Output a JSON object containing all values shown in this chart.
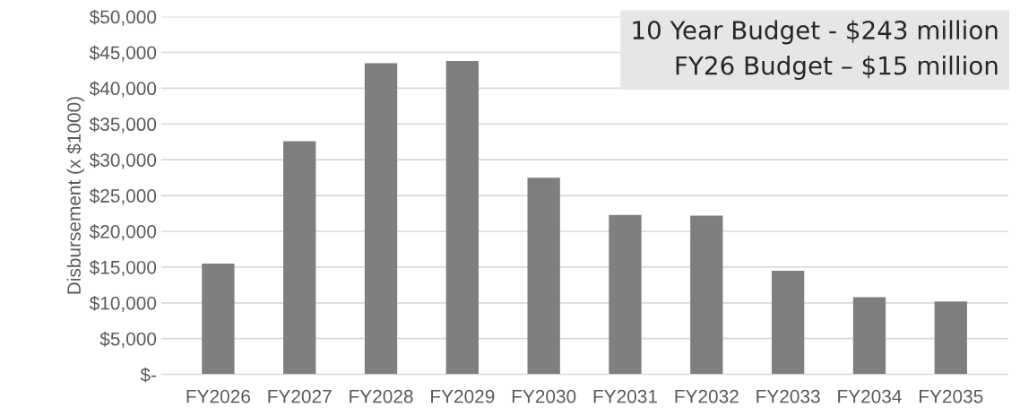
{
  "chart_data": {
    "type": "bar",
    "categories": [
      "FY2026",
      "FY2027",
      "FY2028",
      "FY2029",
      "FY2030",
      "FY2031",
      "FY2032",
      "FY2033",
      "FY2034",
      "FY2035"
    ],
    "values": [
      15500,
      32600,
      43500,
      43800,
      27500,
      22300,
      22200,
      14500,
      10800,
      10200
    ],
    "color": "#7f7f7f",
    "ylabel": "Disbursement (x $1000)",
    "ylim": [
      0,
      50000
    ],
    "yticks": [
      {
        "value": 0,
        "label": "$-"
      },
      {
        "value": 5000,
        "label": "$5,000"
      },
      {
        "value": 10000,
        "label": "$10,000"
      },
      {
        "value": 15000,
        "label": "$15,000"
      },
      {
        "value": 20000,
        "label": "$20,000"
      },
      {
        "value": 25000,
        "label": "$25,000"
      },
      {
        "value": 30000,
        "label": "$30,000"
      },
      {
        "value": 35000,
        "label": "$35,000"
      },
      {
        "value": 40000,
        "label": "$40,000"
      },
      {
        "value": 45000,
        "label": "$45,000"
      },
      {
        "value": 50000,
        "label": "$50,000"
      }
    ],
    "grid": "y",
    "annotations": [
      "10 Year Budget - $243 million",
      "FY26 Budget – $15 million"
    ]
  }
}
